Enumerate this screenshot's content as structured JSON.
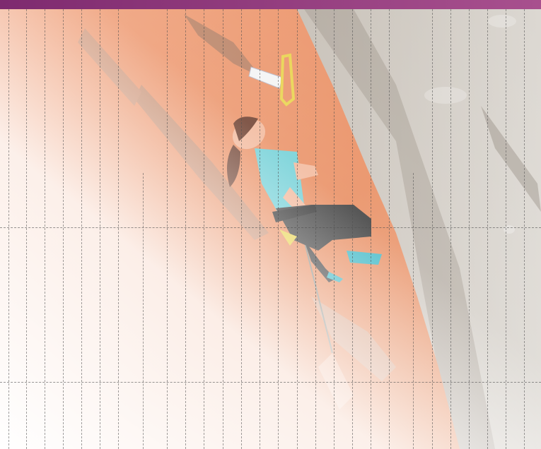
{
  "colors": {
    "topbar_start": "#7e2a6f",
    "topbar_end": "#a8508e",
    "rock_red": "#e88a5c",
    "rock_gray": "#b9b0a3",
    "tank_top": "#6fcfd6",
    "shorts": "#3a3a3a",
    "hair": "#6b3b2a",
    "skin": "#f2b79a",
    "quickdraw": "#e8d24a",
    "fade": "#ffffff"
  },
  "icons": {
    "climber": "climber-figure",
    "quickdraw": "quickdraw-carabiner"
  }
}
